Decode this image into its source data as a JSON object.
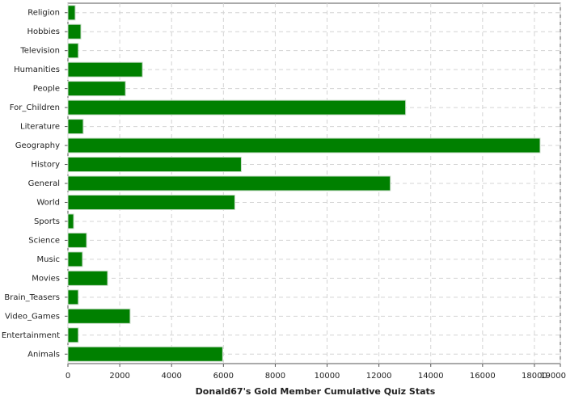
{
  "chart_data": {
    "type": "hbar",
    "title": "Donald67's Gold Member Cumulative Quiz Stats",
    "categories": [
      "Religion",
      "Hobbies",
      "Television",
      "Humanities",
      "People",
      "For_Children",
      "Literature",
      "Geography",
      "History",
      "General",
      "World",
      "Sports",
      "Science",
      "Music",
      "Movies",
      "Brain_Teasers",
      "Video_Games",
      "Entertainment",
      "Animals"
    ],
    "values": [
      280,
      500,
      400,
      2875,
      2220,
      13030,
      590,
      18220,
      6690,
      12440,
      6440,
      220,
      720,
      560,
      1530,
      400,
      2400,
      400,
      5970
    ],
    "color": "#008000",
    "xlim": [
      0,
      19000
    ],
    "xticks": [
      0,
      2000,
      4000,
      6000,
      8000,
      10000,
      12000,
      14000,
      16000,
      18000,
      19000
    ],
    "grid": true
  }
}
